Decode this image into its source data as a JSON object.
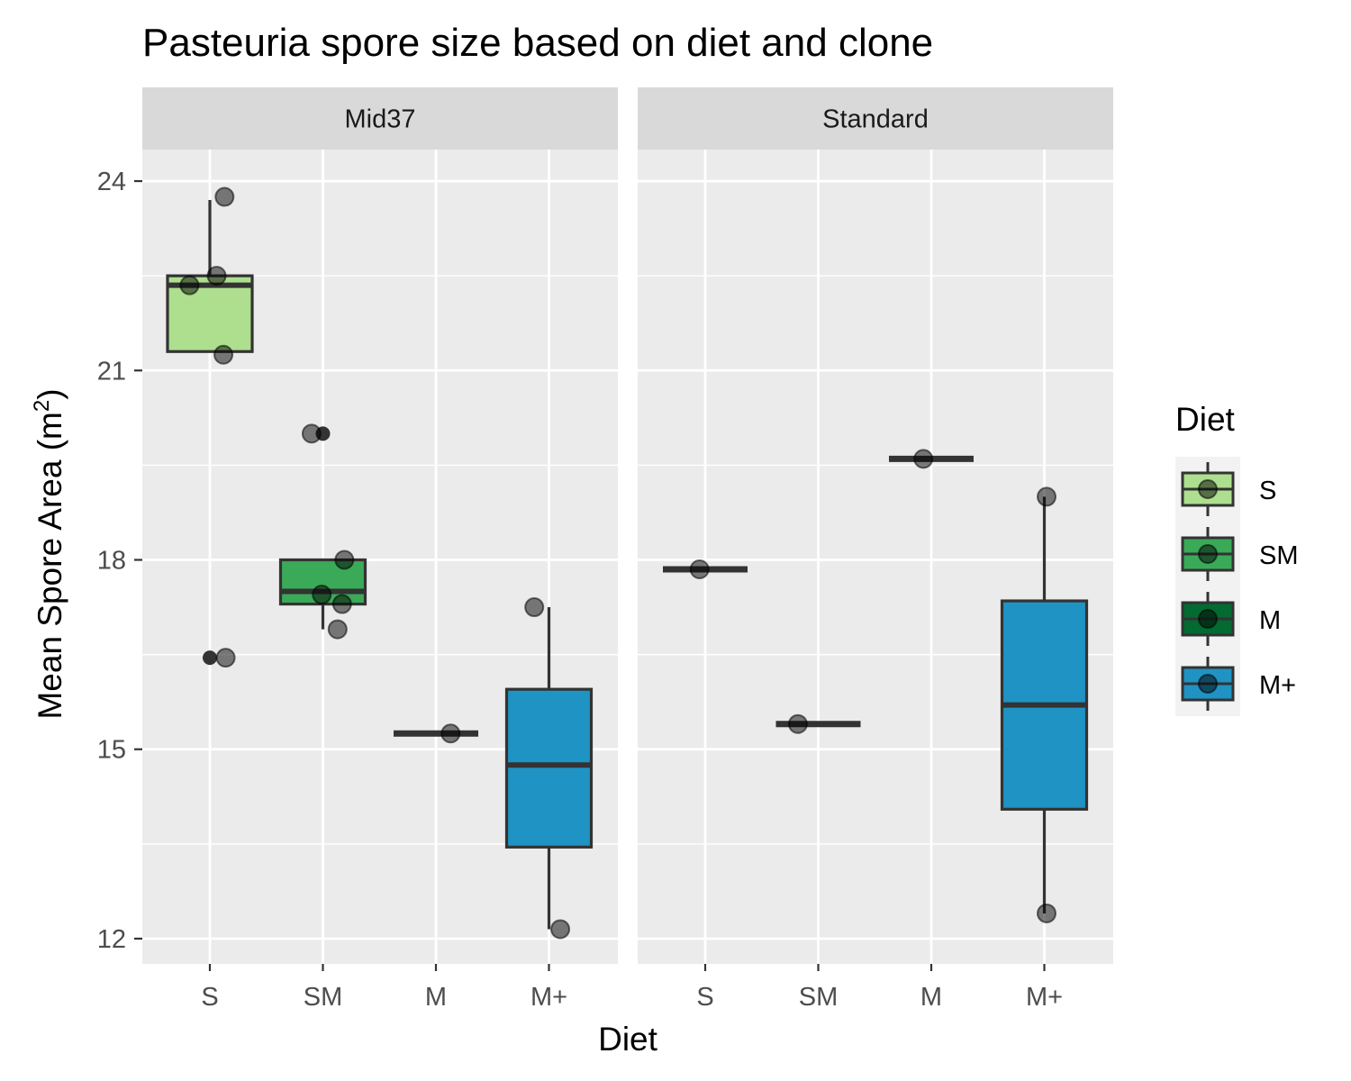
{
  "chart_data": {
    "type": "box",
    "title": "Pasteuria spore size based on diet and clone",
    "xlabel": "Diet",
    "ylabel_text": "Mean Spore Area (m",
    "ylabel_superscript": "2",
    "ylabel_close": ")",
    "ylim": [
      11.6,
      24.5
    ],
    "y_ticks": [
      12,
      15,
      18,
      21,
      24
    ],
    "y_tick_labels": [
      "12",
      "15",
      "18",
      "21",
      "24"
    ],
    "categories": [
      "S",
      "SM",
      "M",
      "M+"
    ],
    "grid": true,
    "legend": {
      "title": "Diet",
      "placement": "right",
      "entries": [
        {
          "label": "S",
          "color": "#addf8e"
        },
        {
          "label": "SM",
          "color": "#3aaa58"
        },
        {
          "label": "M",
          "color": "#036a31"
        },
        {
          "label": "M+",
          "color": "#1f93c3"
        }
      ]
    },
    "panels": [
      {
        "name": "Mid37",
        "boxes": [
          {
            "category": "S",
            "q1": 21.3,
            "median": 22.35,
            "q3": 22.5,
            "whisker_low": 21.3,
            "whisker_high": 23.7,
            "outliers": [
              16.45
            ]
          },
          {
            "category": "SM",
            "q1": 17.3,
            "median": 17.5,
            "q3": 18.0,
            "whisker_low": 16.9,
            "whisker_high": 18.0,
            "outliers": [
              20.0
            ]
          },
          {
            "category": "M",
            "q1": 15.25,
            "median": 15.25,
            "q3": 15.25,
            "whisker_low": 15.25,
            "whisker_high": 15.25,
            "outliers": []
          },
          {
            "category": "M+",
            "q1": 13.45,
            "median": 14.75,
            "q3": 15.95,
            "whisker_low": 12.15,
            "whisker_high": 17.25,
            "outliers": []
          }
        ],
        "points": [
          {
            "category": "S",
            "offset": -0.18,
            "y": 22.35
          },
          {
            "category": "S",
            "offset": 0.06,
            "y": 22.5
          },
          {
            "category": "S",
            "offset": 0.13,
            "y": 23.75
          },
          {
            "category": "S",
            "offset": 0.12,
            "y": 21.25
          },
          {
            "category": "S",
            "offset": 0.14,
            "y": 16.45
          },
          {
            "category": "SM",
            "offset": -0.1,
            "y": 20.0
          },
          {
            "category": "SM",
            "offset": -0.01,
            "y": 17.45
          },
          {
            "category": "SM",
            "offset": 0.19,
            "y": 18.0
          },
          {
            "category": "SM",
            "offset": 0.17,
            "y": 17.3
          },
          {
            "category": "SM",
            "offset": 0.13,
            "y": 16.9
          },
          {
            "category": "M",
            "offset": 0.13,
            "y": 15.25
          },
          {
            "category": "M+",
            "offset": -0.13,
            "y": 17.25
          },
          {
            "category": "M+",
            "offset": 0.1,
            "y": 12.15
          }
        ]
      },
      {
        "name": "Standard",
        "boxes": [
          {
            "category": "S",
            "q1": 17.85,
            "median": 17.85,
            "q3": 17.85,
            "whisker_low": 17.85,
            "whisker_high": 17.85,
            "outliers": []
          },
          {
            "category": "SM",
            "q1": 15.4,
            "median": 15.4,
            "q3": 15.4,
            "whisker_low": 15.4,
            "whisker_high": 15.4,
            "outliers": []
          },
          {
            "category": "M",
            "q1": 19.6,
            "median": 19.6,
            "q3": 19.6,
            "whisker_low": 19.6,
            "whisker_high": 19.6,
            "outliers": []
          },
          {
            "category": "M+",
            "q1": 14.05,
            "median": 15.7,
            "q3": 17.35,
            "whisker_low": 12.4,
            "whisker_high": 19.0,
            "outliers": []
          }
        ],
        "points": [
          {
            "category": "S",
            "offset": -0.05,
            "y": 17.85
          },
          {
            "category": "SM",
            "offset": -0.18,
            "y": 15.4
          },
          {
            "category": "M",
            "offset": -0.07,
            "y": 19.6
          },
          {
            "category": "M+",
            "offset": 0.02,
            "y": 19.0
          },
          {
            "category": "M+",
            "offset": 0.02,
            "y": 12.4
          }
        ]
      }
    ]
  }
}
